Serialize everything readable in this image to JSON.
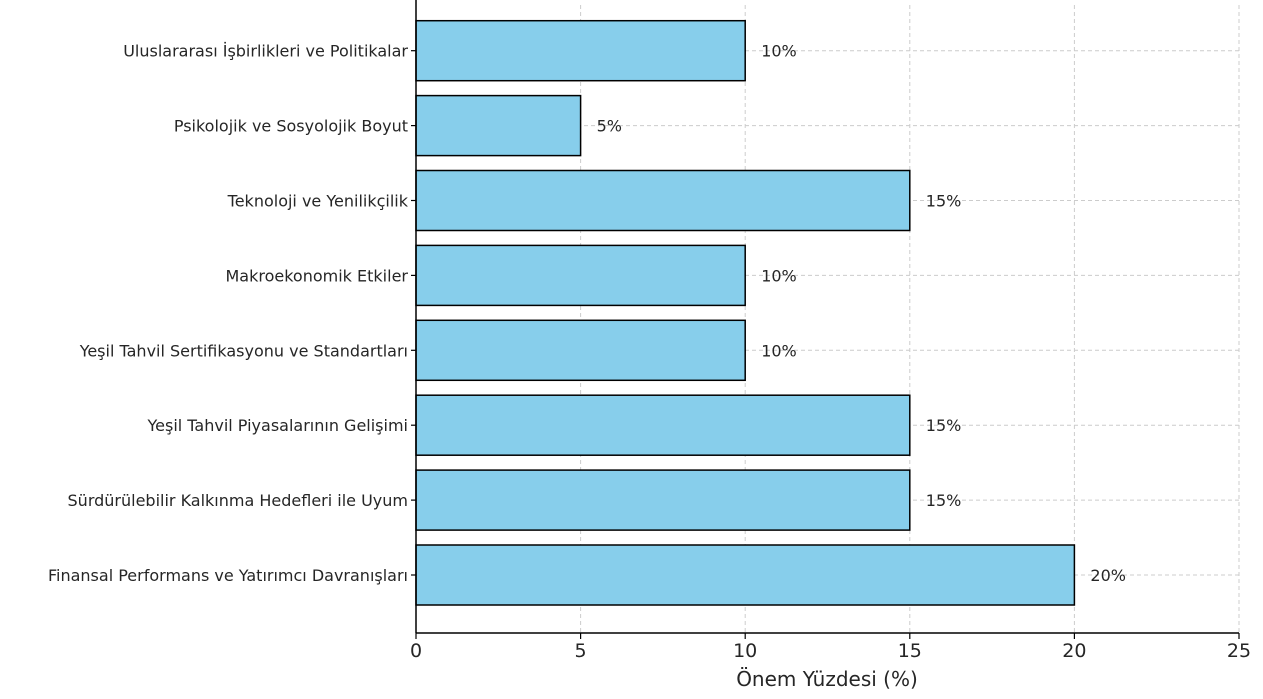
{
  "chart_data": {
    "type": "bar",
    "orientation": "horizontal",
    "title": "",
    "xlabel": "Önem Yüzdesi (%)",
    "ylabel": "",
    "xlim": [
      0,
      25
    ],
    "xticks": [
      0,
      5,
      10,
      15,
      20,
      25
    ],
    "grid": true,
    "bar_color": "#87CEEB",
    "edge_color": "#000000",
    "categories": [
      "Finansal Performans ve Yatırımcı Davranışları",
      "Sürdürülebilir Kalkınma Hedefleri ile Uyum",
      "Yeşil Tahvil Piyasalarının Gelişimi",
      "Yeşil Tahvil Sertifikasyonu ve Standartları",
      "Makroekonomik Etkiler",
      "Teknoloji ve Yenilikçilik",
      "Psikolojik ve Sosyolojik Boyut",
      "Uluslararası İşbirlikleri ve Politikalar"
    ],
    "values": [
      20,
      15,
      15,
      10,
      10,
      15,
      5,
      10
    ],
    "data_labels": [
      "20%",
      "15%",
      "15%",
      "10%",
      "10%",
      "15%",
      "5%",
      "10%"
    ]
  }
}
